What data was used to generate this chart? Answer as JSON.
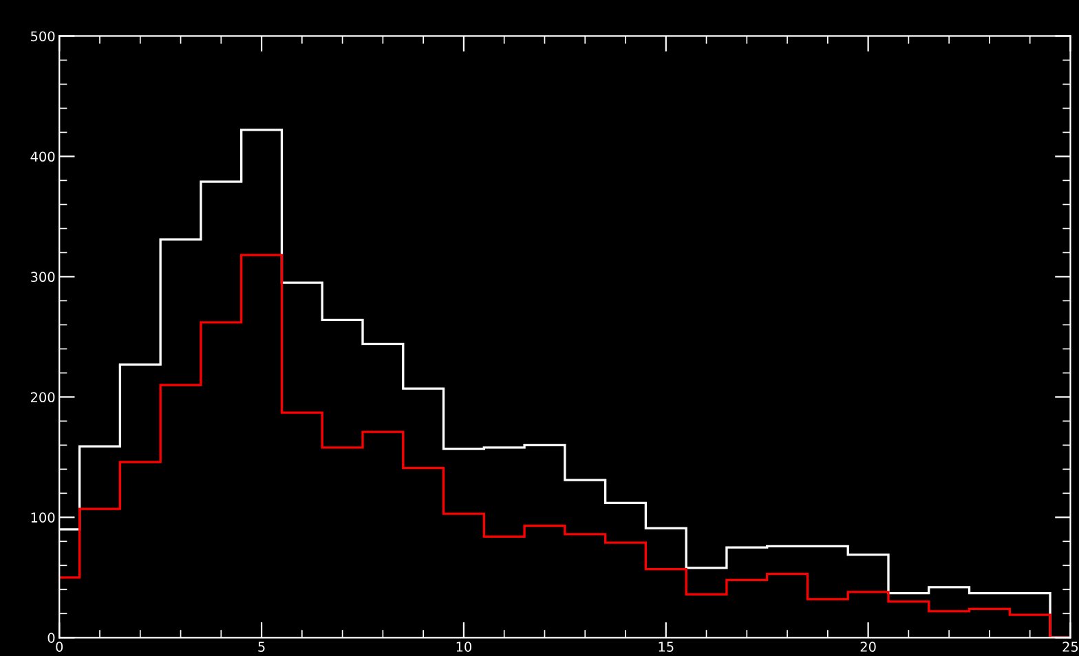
{
  "chart_data": {
    "type": "histogram",
    "bins": [
      0,
      0.5,
      1.5,
      2.5,
      3.5,
      4.5,
      5.5,
      6.5,
      7.5,
      8.5,
      9.5,
      10.5,
      11.5,
      12.5,
      13.5,
      14.5,
      15.5,
      16.5,
      17.5,
      18.5,
      19.5,
      20.5,
      21.5,
      22.5,
      23.5,
      24.5,
      25
    ],
    "series": [
      {
        "color": "#ffffff",
        "values": [
          90,
          159,
          227,
          331,
          379,
          422,
          295,
          264,
          244,
          207,
          157,
          158,
          160,
          131,
          112,
          91,
          58,
          75,
          76,
          76,
          69,
          37,
          42,
          37,
          37,
          0
        ]
      },
      {
        "color": "#ff0000",
        "values": [
          50,
          107,
          146,
          210,
          262,
          318,
          187,
          158,
          171,
          141,
          103,
          84,
          93,
          86,
          79,
          57,
          36,
          48,
          53,
          32,
          38,
          30,
          22,
          24,
          19,
          0
        ]
      }
    ],
    "xlim": [
      0,
      25
    ],
    "ylim": [
      0,
      500
    ],
    "xticks": [
      0,
      5,
      10,
      15,
      20,
      25
    ],
    "yticks": [
      0,
      100,
      200,
      300,
      400,
      500
    ],
    "grid": false,
    "legend": false
  }
}
